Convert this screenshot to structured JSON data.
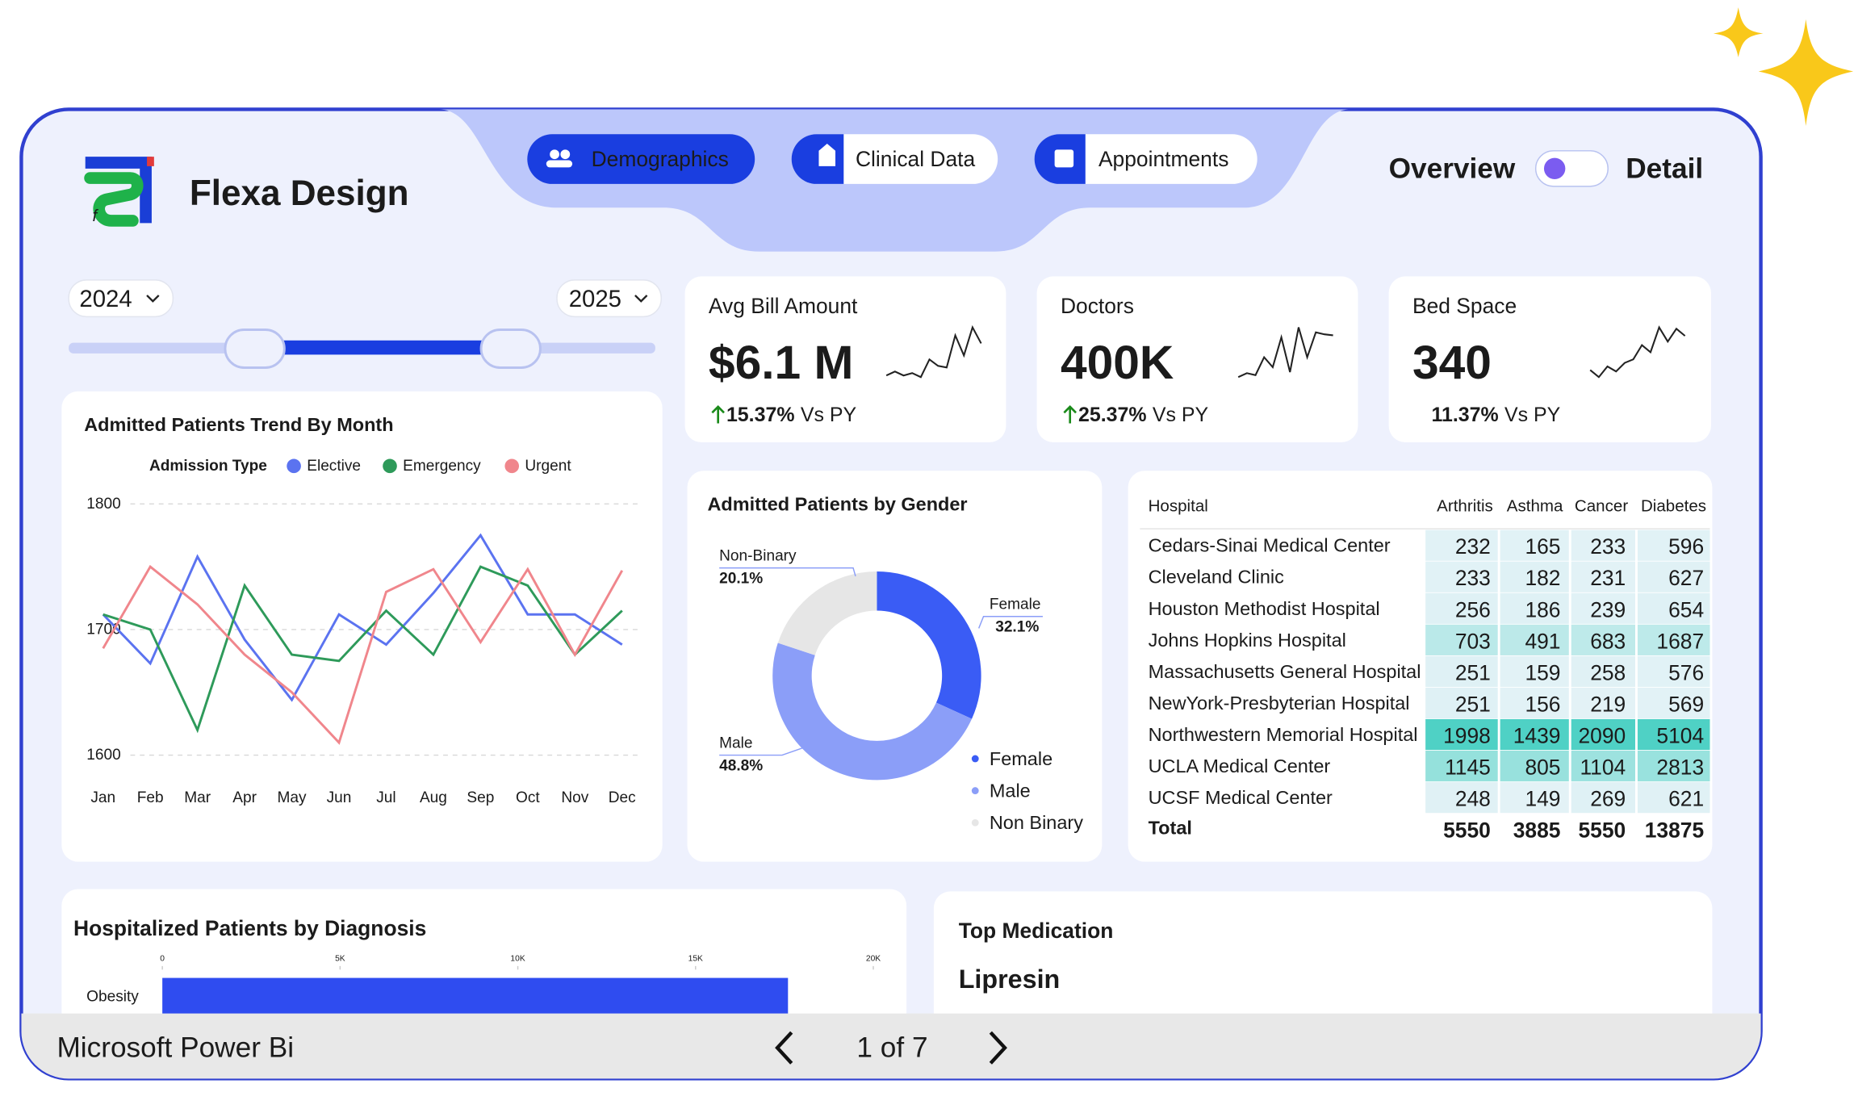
{
  "header": {
    "brand": "Flexa Design",
    "tabs": [
      "Demographics",
      "Clinical Data",
      "Appointments"
    ],
    "view_toggle": [
      "Overview",
      "Detail"
    ]
  },
  "filters": {
    "years": [
      "2024",
      "2025"
    ]
  },
  "kpis": [
    {
      "title": "Avg Bill Amount",
      "value": "$6.1 M",
      "change": "15.37%",
      "comparison": "Vs PY",
      "arrow": true,
      "trend": [
        3,
        3.5,
        3,
        3.3,
        2.8,
        5,
        4.2,
        4,
        8,
        5.5,
        9,
        7
      ]
    },
    {
      "title": "Doctors",
      "value": "400K",
      "change": "25.37%",
      "comparison": "Vs PY",
      "arrow": true,
      "trend": [
        3,
        3.4,
        3.2,
        5,
        4,
        7,
        3.5,
        8,
        5,
        7.5,
        7.3,
        7.2
      ]
    },
    {
      "title": "Bed Space",
      "value": "340",
      "change": "11.37%",
      "comparison": "Vs PY",
      "arrow": false,
      "trend": [
        3,
        2,
        3.5,
        2.8,
        4,
        4.5,
        6.5,
        5.5,
        9,
        7,
        8.8,
        7.8
      ]
    }
  ],
  "chart_data": [
    {
      "type": "line",
      "title": "Admitted Patients Trend By Month",
      "legend_title": "Admission Type",
      "categories": [
        "Jan",
        "Feb",
        "Mar",
        "Apr",
        "May",
        "Jun",
        "Jul",
        "Aug",
        "Sep",
        "Oct",
        "Nov",
        "Dec"
      ],
      "series": [
        {
          "name": "Elective",
          "color": "#5b73f0",
          "values": [
            1712,
            1673,
            1758,
            1692,
            1644,
            1712,
            1688,
            1729,
            1775,
            1712,
            1712,
            1688
          ]
        },
        {
          "name": "Emergency",
          "color": "#2e9a5a",
          "values": [
            1712,
            1700,
            1620,
            1735,
            1680,
            1675,
            1715,
            1680,
            1750,
            1735,
            1680,
            1715
          ]
        },
        {
          "name": "Urgent",
          "color": "#f0868c",
          "values": [
            1685,
            1750,
            1720,
            1680,
            1650,
            1610,
            1730,
            1748,
            1690,
            1748,
            1680,
            1747
          ]
        }
      ],
      "ylim": [
        1600,
        1800
      ],
      "yticks": [
        1600,
        1700,
        1800
      ],
      "grid": true
    },
    {
      "type": "pie",
      "title": "Admitted Patients by Gender",
      "categories": [
        "Female",
        "Male",
        "Non-Binary"
      ],
      "values": [
        32.1,
        48.8,
        20.1
      ],
      "value_labels": [
        "32.1%",
        "48.8%",
        "20.1%"
      ],
      "colors": [
        "#3a5cf5",
        "#8b9ef8",
        "#e6e6e6"
      ],
      "legend_labels": [
        "Female",
        "Male",
        "Non Binary"
      ]
    },
    {
      "type": "bar",
      "title": "Hospitalized Patients by Diagnosis",
      "categories": [
        "Obesity"
      ],
      "values": [
        17600
      ],
      "color": "#2f4cf0",
      "xlim": [
        0,
        20000
      ],
      "xticks": [
        0,
        {
          "value": 5000,
          "label": "5K"
        },
        {
          "value": 10000,
          "label": "10K"
        },
        {
          "value": 15000,
          "label": "15K"
        },
        {
          "value": 20000,
          "label": "20K"
        }
      ]
    }
  ],
  "table": {
    "columns": [
      "Hospital",
      "Arthritis",
      "Asthma",
      "Cancer",
      "Diabetes"
    ],
    "rows": [
      [
        "Cedars-Sinai Medical Center",
        232,
        165,
        233,
        596
      ],
      [
        "Cleveland Clinic",
        233,
        182,
        231,
        627
      ],
      [
        "Houston Methodist Hospital",
        256,
        186,
        239,
        654
      ],
      [
        "Johns Hopkins Hospital",
        703,
        491,
        683,
        1687
      ],
      [
        "Massachusetts General Hospital",
        251,
        159,
        258,
        576
      ],
      [
        "NewYork-Presbyterian Hospital",
        251,
        156,
        219,
        569
      ],
      [
        "Northwestern Memorial Hospital",
        1998,
        1439,
        2090,
        5104
      ],
      [
        "UCLA Medical Center",
        1145,
        805,
        1104,
        2813
      ],
      [
        "UCSF Medical Center",
        248,
        149,
        269,
        621
      ]
    ],
    "total": [
      "Total",
      5550,
      3885,
      5550,
      13875
    ]
  },
  "top_medication": {
    "title": "Top Medication",
    "value": "Lipresin"
  },
  "footer": {
    "app": "Microsoft Power Bi",
    "page": "1 of 7"
  }
}
